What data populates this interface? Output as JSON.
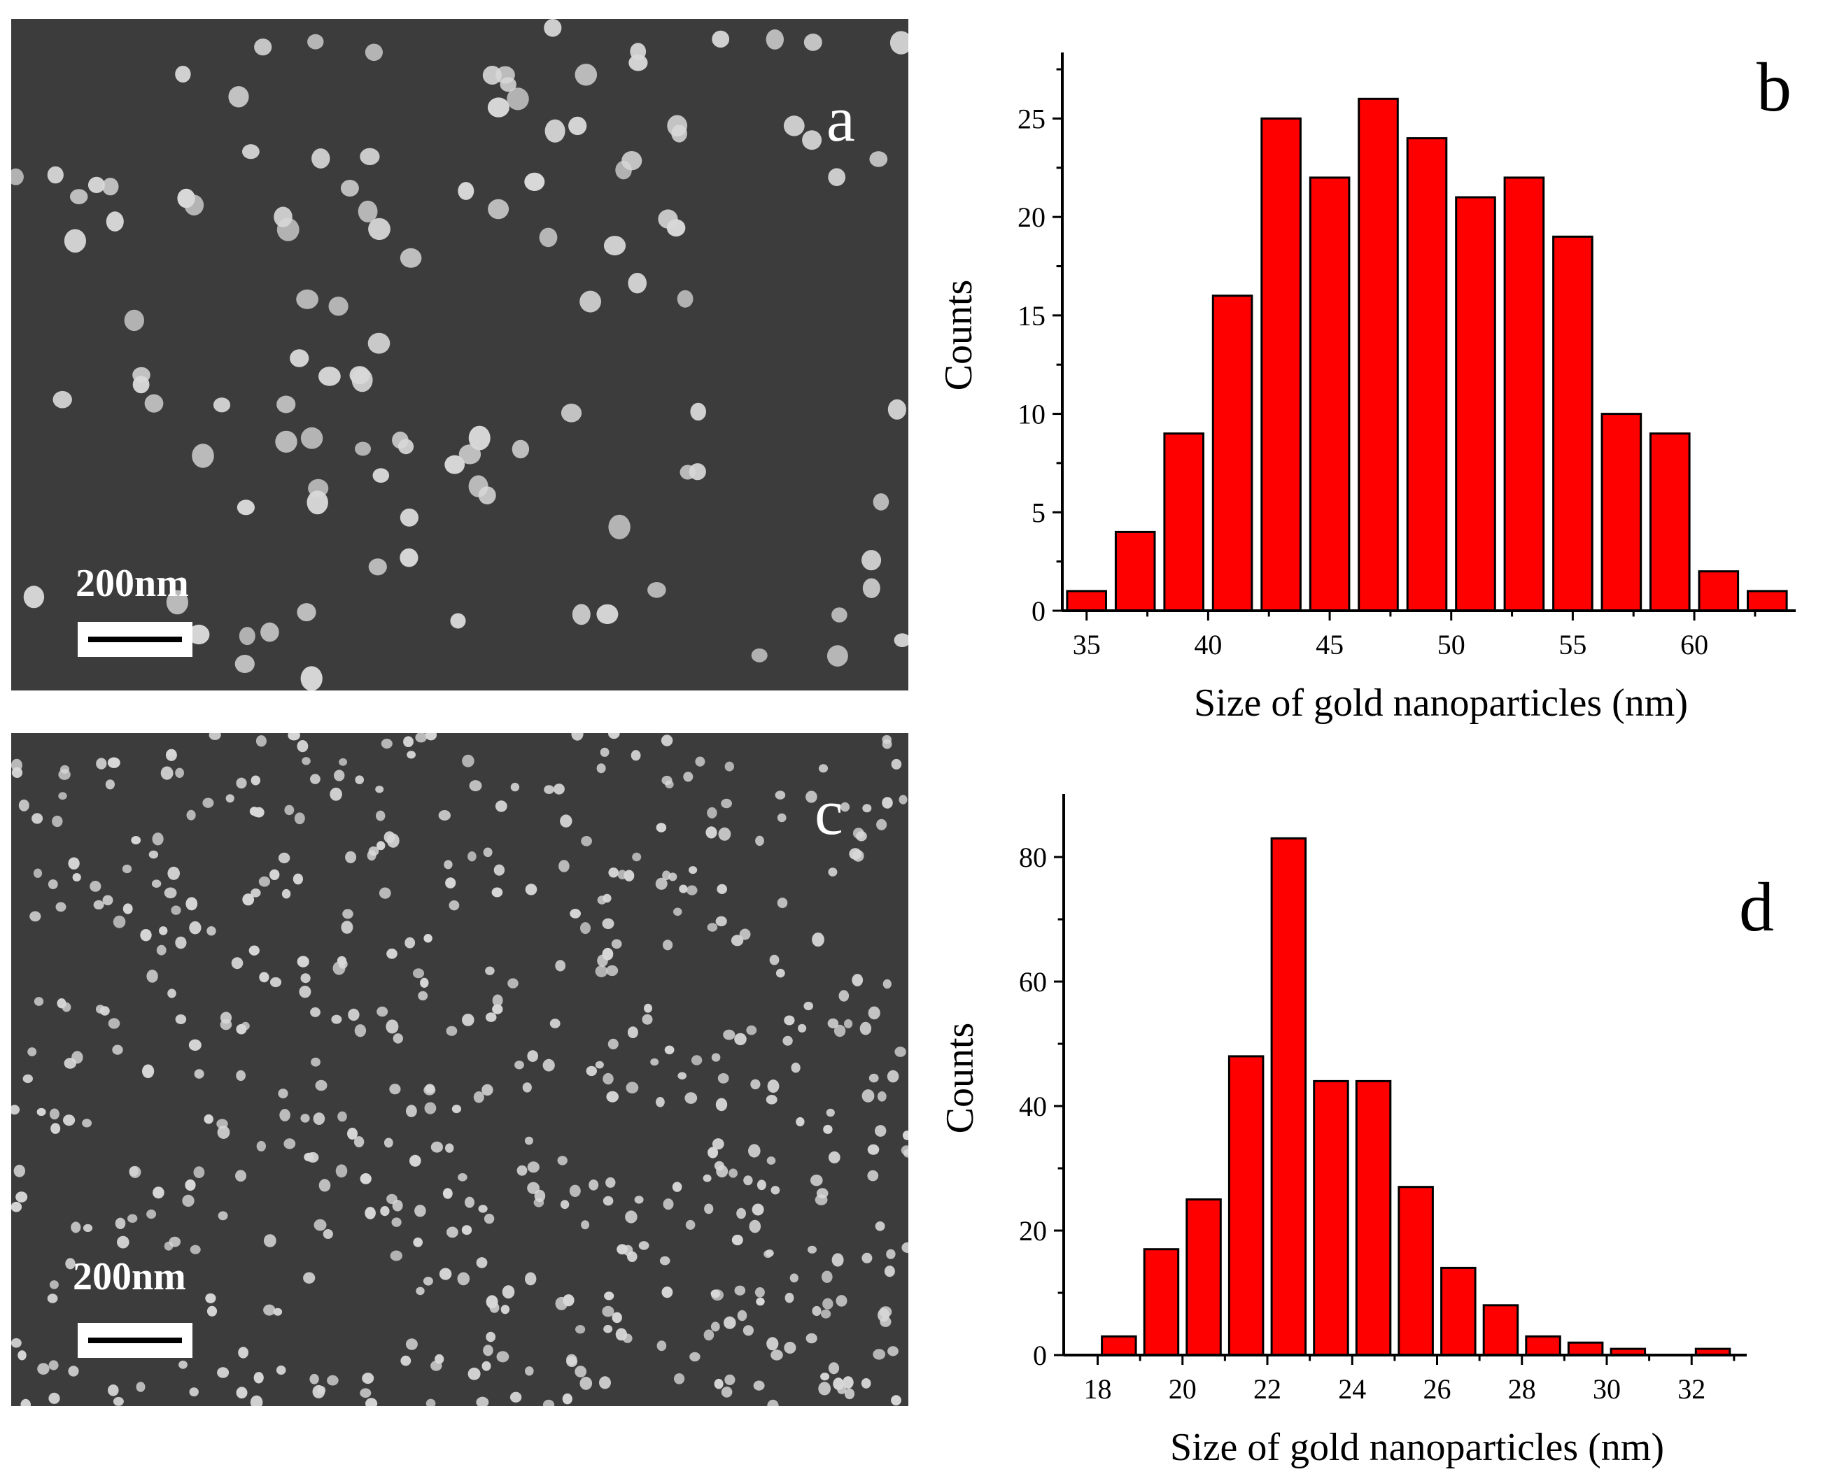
{
  "panels": {
    "a": {
      "letter": "a",
      "scalebar_label": "200nm"
    },
    "c": {
      "letter": "c",
      "scalebar_label": "200nm"
    }
  },
  "colors": {
    "bar_fill": "#ff0000",
    "bar_stroke": "#000000",
    "sem_bg": "#3c3c3c",
    "particle": "#d8d8d8"
  },
  "chart_data": [
    {
      "panel": "b",
      "type": "bar",
      "categories": [
        35,
        37,
        39,
        41,
        43,
        45,
        47,
        49,
        51,
        53,
        55,
        57,
        59,
        61,
        63
      ],
      "values": [
        1,
        4,
        9,
        16,
        25,
        22,
        26,
        24,
        21,
        22,
        19,
        10,
        9,
        2,
        1
      ],
      "xlabel": "Size of gold nanoparticles (nm)",
      "ylabel": "Counts",
      "xlim": [
        34,
        64
      ],
      "ylim": [
        0,
        28
      ],
      "xticks": [
        35,
        40,
        45,
        50,
        55,
        60
      ],
      "yticks": [
        0,
        5,
        10,
        15,
        20,
        25
      ],
      "bar_width": 1.6,
      "grid": false
    },
    {
      "panel": "d",
      "type": "bar",
      "categories": [
        18.5,
        19.5,
        20.5,
        21.5,
        22.5,
        23.5,
        24.5,
        25.5,
        26.5,
        27.5,
        28.5,
        29.5,
        30.5,
        31.5,
        32.5
      ],
      "values": [
        3,
        17,
        25,
        48,
        83,
        44,
        44,
        27,
        14,
        8,
        3,
        2,
        1,
        0,
        1
      ],
      "xlabel": "Size of gold nanoparticles (nm)",
      "ylabel": "Counts",
      "xlim": [
        17.2,
        33.2
      ],
      "ylim": [
        0,
        89
      ],
      "xticks": [
        18,
        20,
        22,
        24,
        26,
        28,
        30,
        32
      ],
      "yticks": [
        0,
        20,
        40,
        60,
        80
      ],
      "bar_width": 0.8,
      "grid": false
    }
  ],
  "chart_letters": {
    "b": "b",
    "d": "d"
  }
}
